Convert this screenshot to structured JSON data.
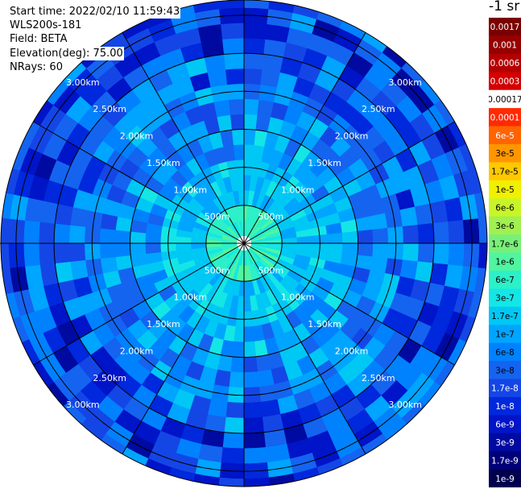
{
  "info": {
    "start_time": "Start time: 2022/02/10 11:59:43",
    "device": "WLS200s-181",
    "field": "Field: BETA",
    "elevation": "Elevation(deg): 75.00",
    "nrays": "NRays: 60"
  },
  "colorbar": {
    "unit": "-1 sr",
    "entries": [
      {
        "label": "0.0017",
        "color": "#7a0000",
        "text_color": "#ffffff"
      },
      {
        "label": "0.001",
        "color": "#960000",
        "text_color": "#ffffff"
      },
      {
        "label": "0.0006",
        "color": "#b40000",
        "text_color": "#ffffff"
      },
      {
        "label": "0.0003",
        "color": "#d20000",
        "text_color": "#ffffff"
      },
      {
        "label": "0.00017",
        "color": "#ffffff",
        "text_color": "#000000"
      },
      {
        "label": "0.0001",
        "color": "#ff2a00",
        "text_color": "#ffffff"
      },
      {
        "label": "6e-5",
        "color": "#ff6400",
        "text_color": "#ffffff"
      },
      {
        "label": "3e-5",
        "color": "#ff9600",
        "text_color": "#000000"
      },
      {
        "label": "1.7e-5",
        "color": "#ffc800",
        "text_color": "#000000"
      },
      {
        "label": "1e-5",
        "color": "#f0f000",
        "text_color": "#000000"
      },
      {
        "label": "6e-6",
        "color": "#c8f528",
        "text_color": "#000000"
      },
      {
        "label": "3e-6",
        "color": "#a0f050",
        "text_color": "#000000"
      },
      {
        "label": "1.7e-6",
        "color": "#78f078",
        "text_color": "#000000"
      },
      {
        "label": "1e-6",
        "color": "#50f5a0",
        "text_color": "#000000"
      },
      {
        "label": "6e-7",
        "color": "#2cf0c8",
        "text_color": "#000000"
      },
      {
        "label": "3e-7",
        "color": "#14e6e6",
        "text_color": "#000000"
      },
      {
        "label": "1.7e-7",
        "color": "#00c8f5",
        "text_color": "#000000"
      },
      {
        "label": "1e-7",
        "color": "#00a5ff",
        "text_color": "#000000"
      },
      {
        "label": "6e-8",
        "color": "#0082ff",
        "text_color": "#000000"
      },
      {
        "label": "3e-8",
        "color": "#1464f0",
        "text_color": "#000000"
      },
      {
        "label": "1.7e-8",
        "color": "#1446e6",
        "text_color": "#ffffff"
      },
      {
        "label": "1e-8",
        "color": "#0028dc",
        "text_color": "#ffffff"
      },
      {
        "label": "6e-9",
        "color": "#0014c8",
        "text_color": "#ffffff"
      },
      {
        "label": "3e-9",
        "color": "#000aa0",
        "text_color": "#ffffff"
      },
      {
        "label": "1.7e-9",
        "color": "#000078",
        "text_color": "#ffffff"
      },
      {
        "label": "1e-9",
        "color": "#00004e",
        "text_color": "#ffffff"
      }
    ]
  },
  "chart_data": {
    "type": "heatmap",
    "projection": "polar",
    "field": "BETA",
    "n_rays": 60,
    "spokes_deg": [
      0,
      30,
      60,
      90,
      120,
      150,
      180,
      210,
      240,
      270,
      300,
      330
    ],
    "range_rings": [
      {
        "label": "500m",
        "km": 0.5
      },
      {
        "label": "1.00km",
        "km": 1.0
      },
      {
        "label": "1.50km",
        "km": 1.5
      },
      {
        "label": "2.00km",
        "km": 2.0
      },
      {
        "label": "2.50km",
        "km": 2.5
      },
      {
        "label": "3.00km",
        "km": 3.0
      }
    ],
    "max_range_km": 3.2,
    "blind_zone_km": 0.1,
    "gate_km": 0.2,
    "ring_label_bearings_deg": [
      315,
      45,
      135,
      225
    ],
    "radial_profile": [
      {
        "range_km": 0.1,
        "typical": "6e-7",
        "spread": 1
      },
      {
        "range_km": 0.5,
        "typical": "1.7e-7",
        "spread": 1
      },
      {
        "range_km": 1.0,
        "typical": "1e-7",
        "spread": 2
      },
      {
        "range_km": 1.5,
        "typical": "6e-8",
        "spread": 2
      },
      {
        "range_km": 2.0,
        "typical": "3e-8",
        "spread": 3
      },
      {
        "range_km": 2.5,
        "typical": "1.7e-8",
        "spread": 3
      },
      {
        "range_km": 3.2,
        "typical": "1.7e-8",
        "spread": 3
      }
    ]
  }
}
